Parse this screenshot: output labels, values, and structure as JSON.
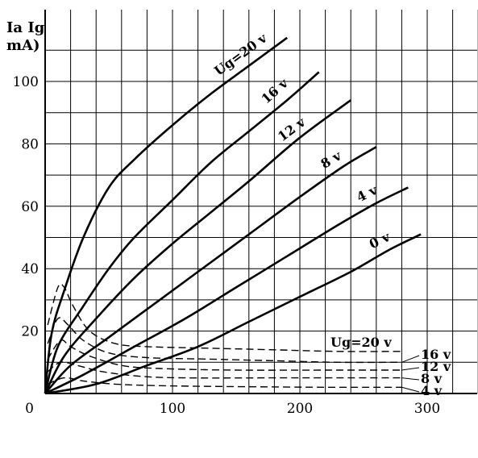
{
  "chart_data": {
    "type": "line",
    "ylabel_line1": "Ia Ig",
    "ylabel_line2": "mA)",
    "origin_label": "0",
    "x_ticks": [
      100,
      200,
      300
    ],
    "y_ticks": [
      20,
      40,
      60,
      80,
      100
    ],
    "xlim": [
      0,
      340
    ],
    "ylim": [
      0,
      118
    ],
    "grid": true,
    "anode_current_series": [
      {
        "label": "Ug=20 v",
        "points": [
          [
            0,
            0
          ],
          [
            5,
            19
          ],
          [
            15,
            33
          ],
          [
            30,
            50
          ],
          [
            50,
            66
          ],
          [
            70,
            75
          ],
          [
            100,
            86
          ],
          [
            130,
            96
          ],
          [
            160,
            105
          ],
          [
            190,
            114
          ]
        ]
      },
      {
        "label": "16 v",
        "points": [
          [
            0,
            0
          ],
          [
            10,
            15
          ],
          [
            30,
            28
          ],
          [
            50,
            40
          ],
          [
            70,
            50
          ],
          [
            100,
            62
          ],
          [
            130,
            74
          ],
          [
            160,
            84
          ],
          [
            190,
            94
          ],
          [
            215,
            103
          ]
        ]
      },
      {
        "label": "12 v",
        "points": [
          [
            0,
            0
          ],
          [
            15,
            12
          ],
          [
            40,
            24
          ],
          [
            70,
            37
          ],
          [
            100,
            48
          ],
          [
            130,
            58
          ],
          [
            160,
            68
          ],
          [
            200,
            82
          ],
          [
            240,
            94
          ]
        ]
      },
      {
        "label": "8 v",
        "points": [
          [
            0,
            0
          ],
          [
            20,
            9
          ],
          [
            50,
            18
          ],
          [
            90,
            30
          ],
          [
            130,
            42
          ],
          [
            170,
            54
          ],
          [
            200,
            63
          ],
          [
            235,
            73
          ],
          [
            260,
            79
          ]
        ]
      },
      {
        "label": "4 v",
        "points": [
          [
            0,
            0
          ],
          [
            30,
            6
          ],
          [
            70,
            15
          ],
          [
            110,
            24
          ],
          [
            150,
            34
          ],
          [
            190,
            44
          ],
          [
            230,
            54
          ],
          [
            260,
            61
          ],
          [
            285,
            66
          ]
        ]
      },
      {
        "label": "0 v",
        "points": [
          [
            0,
            0
          ],
          [
            40,
            3
          ],
          [
            80,
            9
          ],
          [
            120,
            15
          ],
          [
            160,
            23
          ],
          [
            200,
            31
          ],
          [
            240,
            39
          ],
          [
            270,
            46
          ],
          [
            295,
            51
          ]
        ]
      }
    ],
    "grid_current_series": [
      {
        "label": "Ug=20 v",
        "points": [
          [
            2,
            22
          ],
          [
            10,
            34
          ],
          [
            15,
            34
          ],
          [
            22,
            28
          ],
          [
            35,
            20
          ],
          [
            55,
            16
          ],
          [
            80,
            15
          ],
          [
            130,
            14.5
          ],
          [
            180,
            14
          ],
          [
            230,
            13.5
          ],
          [
            280,
            13.5
          ]
        ]
      },
      {
        "label": "16 v",
        "points": [
          [
            2,
            16
          ],
          [
            10,
            24
          ],
          [
            18,
            22
          ],
          [
            30,
            17
          ],
          [
            50,
            13
          ],
          [
            80,
            11.5
          ],
          [
            130,
            11
          ],
          [
            180,
            10.5
          ],
          [
            230,
            10
          ],
          [
            280,
            10
          ]
        ]
      },
      {
        "label": "12 v",
        "points": [
          [
            2,
            11
          ],
          [
            12,
            17
          ],
          [
            20,
            15
          ],
          [
            35,
            12
          ],
          [
            60,
            9
          ],
          [
            90,
            8
          ],
          [
            150,
            7.5
          ],
          [
            220,
            7.5
          ],
          [
            280,
            7.5
          ]
        ]
      },
      {
        "label": "8 v",
        "points": [
          [
            2,
            7
          ],
          [
            12,
            10
          ],
          [
            25,
            9
          ],
          [
            45,
            7
          ],
          [
            75,
            5.5
          ],
          [
            110,
            5
          ],
          [
            180,
            5
          ],
          [
            280,
            5
          ]
        ]
      },
      {
        "label": "4 v",
        "points": [
          [
            2,
            3
          ],
          [
            15,
            5
          ],
          [
            30,
            4
          ],
          [
            55,
            3
          ],
          [
            90,
            2.5
          ],
          [
            150,
            2.2
          ],
          [
            220,
            2
          ],
          [
            280,
            2
          ]
        ]
      }
    ],
    "grid_current_labels": [
      "Ug=20 v",
      "16 v",
      "12 v",
      "8 v",
      "4 v"
    ]
  }
}
